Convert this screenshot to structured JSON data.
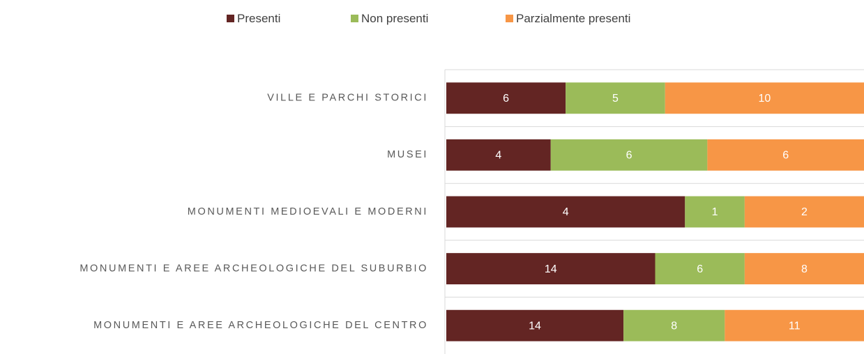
{
  "chart_data": {
    "type": "bar",
    "orientation": "horizontal",
    "stacking": "percent",
    "categories": [
      "VILLE E PARCHI STORICI",
      "MUSEI",
      "MONUMENTI MEDIOEVALI E MODERNI",
      "MONUMENTI E AREE ARCHEOLOGICHE DEL SUBURBIO",
      "MONUMENTI E AREE ARCHEOLOGICHE DEL CENTRO"
    ],
    "series": [
      {
        "name": "Presenti",
        "color": "#632523",
        "values": [
          6,
          4,
          4,
          14,
          14
        ]
      },
      {
        "name": "Non presenti",
        "color": "#9bbb59",
        "values": [
          5,
          6,
          1,
          6,
          8
        ]
      },
      {
        "name": "Parzialmente presenti",
        "color": "#f79646",
        "values": [
          10,
          6,
          2,
          8,
          11
        ]
      }
    ],
    "legend": "top",
    "grid": true
  }
}
